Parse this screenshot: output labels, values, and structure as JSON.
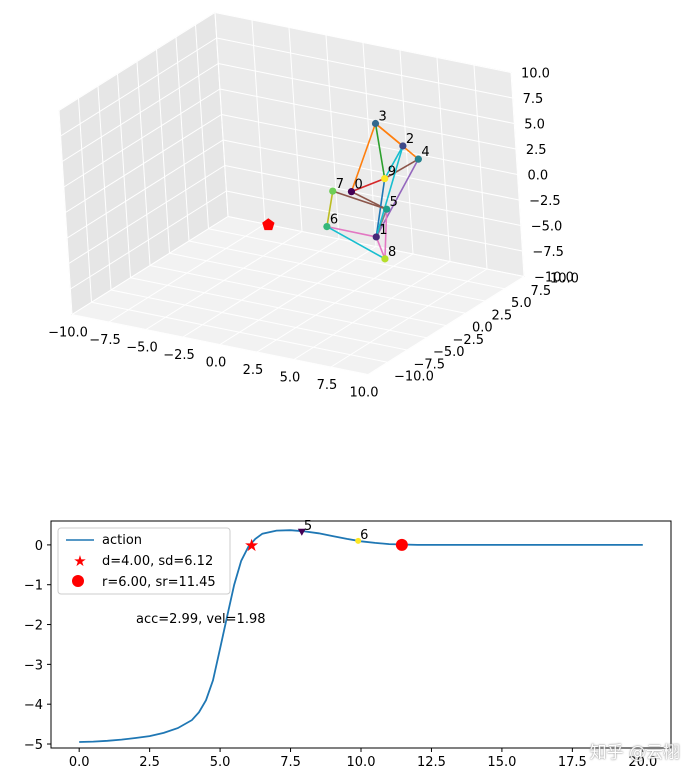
{
  "watermark": "知乎 @云栩",
  "chart_data": [
    {
      "type": "scatter3d",
      "xlim": [
        -10,
        10
      ],
      "ylim": [
        -10,
        10
      ],
      "zlim": [
        -10,
        10
      ],
      "xticks": [
        "−10.0",
        "−7.5",
        "−5.0",
        "−2.5",
        "0.0",
        "2.5",
        "5.0",
        "7.5",
        "10.0"
      ],
      "yticks": [
        "−10.0",
        "−7.5",
        "−5.0",
        "−2.5",
        "0.0",
        "2.5",
        "5.0",
        "7.5",
        "10.0"
      ],
      "zticks": [
        "−10.0",
        "−7.5",
        "−5.0",
        "−2.5",
        "0.0",
        "2.5",
        "5.0",
        "7.5",
        "10.0"
      ],
      "grid": true,
      "target": {
        "marker": "pentagon",
        "color": "#ff0000",
        "point": [
          0.5,
          -4,
          -1
        ]
      },
      "nodes": [
        {
          "label": "0",
          "p": [
            5.5,
            -2.5,
            3.0
          ],
          "color": "#440154"
        },
        {
          "label": "1",
          "p": [
            7.0,
            -2.5,
            -1.0
          ],
          "color": "#482878"
        },
        {
          "label": "2",
          "p": [
            7.0,
            1.5,
            6.0
          ],
          "color": "#3e4a89"
        },
        {
          "label": "3",
          "p": [
            5.5,
            1.0,
            8.0
          ],
          "color": "#31688e"
        },
        {
          "label": "4",
          "p": [
            8.0,
            1.5,
            5.0
          ],
          "color": "#26828e"
        },
        {
          "label": "5",
          "p": [
            7.0,
            -1.0,
            1.0
          ],
          "color": "#1f9e89"
        },
        {
          "label": "6",
          "p": [
            4.5,
            -4.0,
            0.0
          ],
          "color": "#35b779"
        },
        {
          "label": "7",
          "p": [
            4.5,
            -3.0,
            3.0
          ],
          "color": "#6ece58"
        },
        {
          "label": "8",
          "p": [
            7.5,
            -2.5,
            -3.0
          ],
          "color": "#b5de2b"
        },
        {
          "label": "9",
          "p": [
            7.0,
            -1.0,
            4.0
          ],
          "color": "#fde725"
        }
      ],
      "edges": [
        {
          "a": 0,
          "b": 9,
          "color": "#d62728"
        },
        {
          "a": 0,
          "b": 5,
          "color": "#8c564b"
        },
        {
          "a": 0,
          "b": 3,
          "color": "#ff7f0e"
        },
        {
          "a": 3,
          "b": 9,
          "color": "#2ca02c"
        },
        {
          "a": 3,
          "b": 2,
          "color": "#ff7f0e"
        },
        {
          "a": 3,
          "b": 4,
          "color": "#ff7f0e"
        },
        {
          "a": 2,
          "b": 9,
          "color": "#17becf"
        },
        {
          "a": 9,
          "b": 4,
          "color": "#8c564b"
        },
        {
          "a": 4,
          "b": 1,
          "color": "#9467bd"
        },
        {
          "a": 9,
          "b": 1,
          "color": "#1f77b4"
        },
        {
          "a": 5,
          "b": 1,
          "color": "#7f7f7f"
        },
        {
          "a": 5,
          "b": 8,
          "color": "#e377c2"
        },
        {
          "a": 7,
          "b": 6,
          "color": "#bcbd22"
        },
        {
          "a": 7,
          "b": 5,
          "color": "#8c564b"
        },
        {
          "a": 6,
          "b": 1,
          "color": "#e377c2"
        },
        {
          "a": 6,
          "b": 8,
          "color": "#17becf"
        },
        {
          "a": 8,
          "b": 1,
          "color": "#e377c2"
        },
        {
          "a": 1,
          "b": 2,
          "color": "#17becf"
        }
      ]
    },
    {
      "type": "line",
      "xlim": [
        -1,
        21
      ],
      "ylim": [
        -5.1,
        0.6
      ],
      "xticks": [
        0,
        2.5,
        5,
        7.5,
        10,
        12.5,
        15,
        17.5,
        20
      ],
      "xtick_labels": [
        "0.0",
        "2.5",
        "5.0",
        "7.5",
        "10.0",
        "12.5",
        "15.0",
        "17.5",
        "20.0"
      ],
      "yticks": [
        0,
        -1,
        -2,
        -3,
        -4,
        -5
      ],
      "ytick_labels": [
        "0",
        "−1",
        "−2",
        "−3",
        "−4",
        "−5"
      ],
      "series": [
        {
          "name": "action",
          "color": "#1f77b4",
          "x": [
            0,
            0.5,
            1,
            1.5,
            2,
            2.5,
            3,
            3.5,
            4,
            4.25,
            4.5,
            4.75,
            5,
            5.25,
            5.5,
            5.75,
            6,
            6.25,
            6.5,
            7,
            7.5,
            8,
            8.5,
            9,
            9.5,
            10,
            10.5,
            11,
            11.5,
            12,
            13,
            14,
            15,
            16,
            17,
            18,
            19,
            20
          ],
          "y": [
            -4.95,
            -4.94,
            -4.92,
            -4.89,
            -4.85,
            -4.8,
            -4.72,
            -4.6,
            -4.4,
            -4.2,
            -3.9,
            -3.4,
            -2.6,
            -1.8,
            -1.0,
            -0.4,
            -0.05,
            0.15,
            0.28,
            0.36,
            0.37,
            0.34,
            0.29,
            0.22,
            0.15,
            0.09,
            0.05,
            0.02,
            0.01,
            0.0,
            0.0,
            0.0,
            0.0,
            0.0,
            0.0,
            0.0,
            0.0,
            0.0
          ]
        }
      ],
      "markers": [
        {
          "name": "d=4.00, sd=6.12",
          "marker": "star",
          "color": "#ff0000",
          "x": 6.12,
          "y": 0.0
        },
        {
          "name": "r=6.00, sr=11.45",
          "marker": "circle",
          "color": "#ff0000",
          "x": 11.45,
          "y": 0.0
        }
      ],
      "point_labels": [
        {
          "text": "5",
          "x": 7.9,
          "y": 0.33,
          "color": "#440154"
        },
        {
          "text": "6",
          "x": 9.9,
          "y": 0.1,
          "color": "#fde725"
        }
      ],
      "annotation": "acc=2.99, vel=1.98",
      "annotation_at": [
        2,
        -2.0
      ],
      "legend": "upper-left"
    }
  ]
}
